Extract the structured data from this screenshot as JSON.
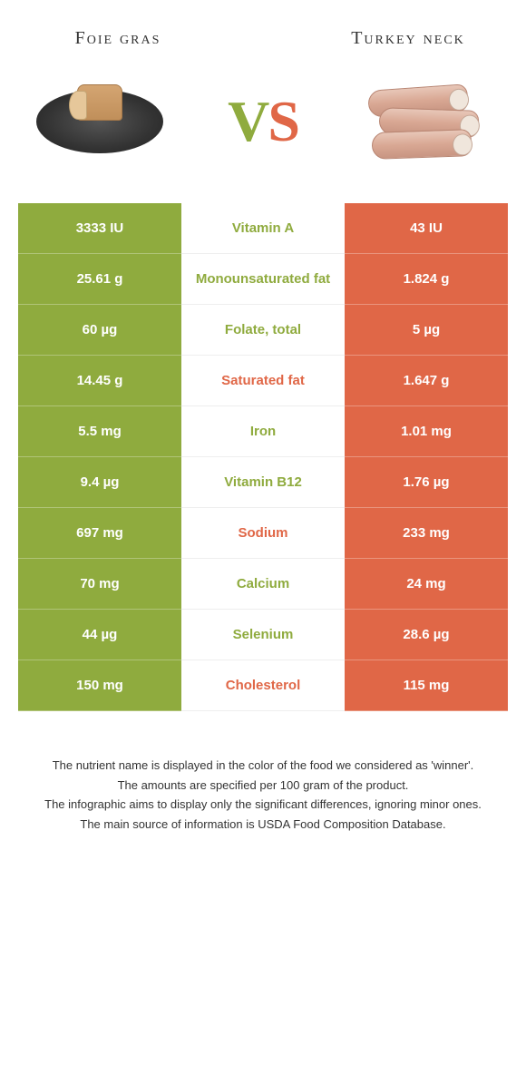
{
  "header": {
    "left_label": "Foie gras",
    "right_label": "Turkey neck",
    "vs_text": "VS",
    "label_fontsize": 20,
    "right_label_fontsize": 20
  },
  "colors": {
    "left": "#8fab3e",
    "right": "#e06747",
    "left_text_on_white": "#8fab3e",
    "right_text_on_white": "#e06747",
    "vs_left_color": "#8fab3e",
    "vs_right_color": "#e06747"
  },
  "table": {
    "rows": [
      {
        "left": "3333 IU",
        "label": "Vitamin A",
        "right": "43 IU",
        "winner": "left"
      },
      {
        "left": "25.61 g",
        "label": "Monounsaturated fat",
        "right": "1.824 g",
        "winner": "left"
      },
      {
        "left": "60 µg",
        "label": "Folate, total",
        "right": "5 µg",
        "winner": "left"
      },
      {
        "left": "14.45 g",
        "label": "Saturated fat",
        "right": "1.647 g",
        "winner": "right"
      },
      {
        "left": "5.5 mg",
        "label": "Iron",
        "right": "1.01 mg",
        "winner": "left"
      },
      {
        "left": "9.4 µg",
        "label": "Vitamin B12",
        "right": "1.76 µg",
        "winner": "left"
      },
      {
        "left": "697 mg",
        "label": "Sodium",
        "right": "233 mg",
        "winner": "right"
      },
      {
        "left": "70 mg",
        "label": "Calcium",
        "right": "24 mg",
        "winner": "left"
      },
      {
        "left": "44 µg",
        "label": "Selenium",
        "right": "28.6 µg",
        "winner": "left"
      },
      {
        "left": "150 mg",
        "label": "Cholesterol",
        "right": "115 mg",
        "winner": "right"
      }
    ]
  },
  "footnotes": [
    "The nutrient name is displayed in the color of the food we considered as 'winner'.",
    "The amounts are specified per 100 gram of the product.",
    "The infographic aims to display only the significant differences, ignoring minor ones.",
    "The main source of information is USDA Food Composition Database."
  ]
}
